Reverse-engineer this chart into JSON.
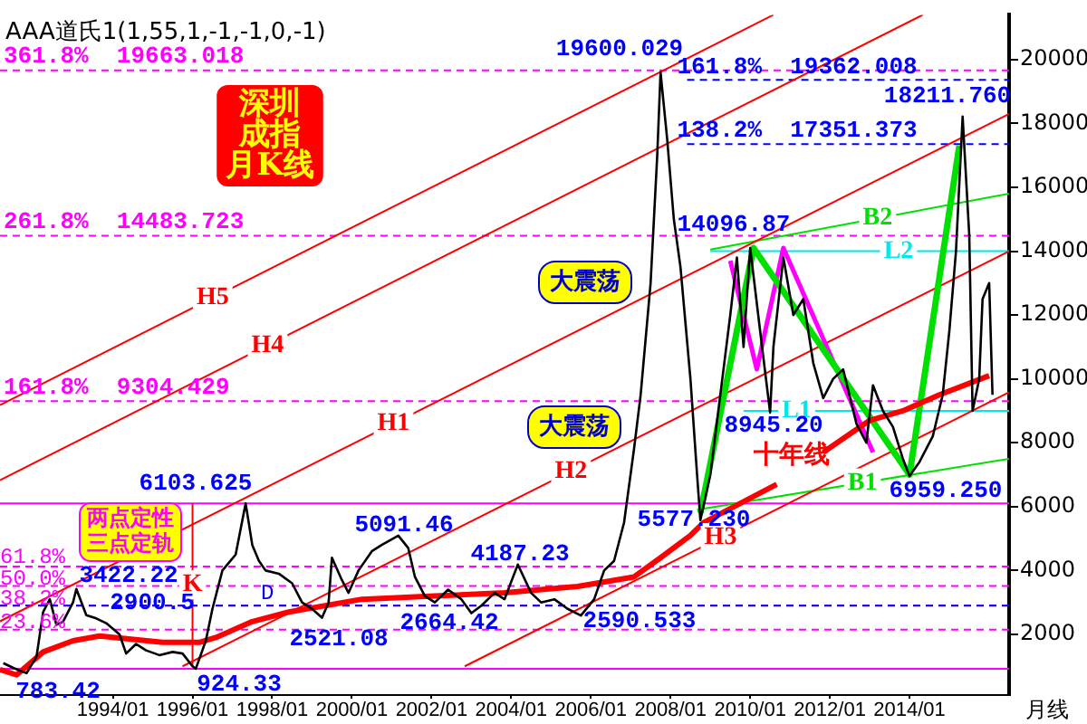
{
  "chart_data": {
    "type": "line",
    "title": "AAA道氏1(1,55,1,-1,-1,0,-1)",
    "marker": "none",
    "grid": false,
    "xlim": [
      "1991-03",
      "2016-07"
    ],
    "ylim": [
      100,
      21400
    ],
    "xticks": [
      {
        "value": "1994-01",
        "label": "1994/01"
      },
      {
        "value": "1996-01",
        "label": "1996/01"
      },
      {
        "value": "1998-01",
        "label": "1998/01"
      },
      {
        "value": "2000-01",
        "label": "2000/01"
      },
      {
        "value": "2002-01",
        "label": "2002/01"
      },
      {
        "value": "2004-01",
        "label": "2004/01"
      },
      {
        "value": "2006-01",
        "label": "2006/01"
      },
      {
        "value": "2008-01",
        "label": "2008/01"
      },
      {
        "value": "2010-01",
        "label": "2010/01"
      },
      {
        "value": "2012-01",
        "label": "2012/01"
      },
      {
        "value": "2014-01",
        "label": "2014/01"
      }
    ],
    "yticks": [
      2000,
      4000,
      6000,
      8000,
      10000,
      12000,
      14000,
      16000,
      18000,
      20000
    ],
    "series": [
      {
        "color": "#000000",
        "x": [
          "1991-04",
          "1991-07",
          "1991-11",
          "1992-02",
          "1992-04",
          "1992-06",
          "1992-08",
          "1992-10",
          "1993-01",
          "1993-02",
          "1993-05",
          "1993-08",
          "1993-11",
          "1994-03",
          "1994-05",
          "1994-08",
          "1994-11",
          "1995-03",
          "1995-07",
          "1995-10",
          "1996-01",
          "1996-02",
          "1996-05",
          "1996-07",
          "1996-10",
          "1997-02",
          "1997-05",
          "1997-07",
          "1997-09",
          "1997-11",
          "1998-03",
          "1998-07",
          "1998-10",
          "1999-01",
          "1999-04",
          "1999-06",
          "1999-07",
          "1999-10",
          "1999-12",
          "2000-03",
          "2000-07",
          "2000-10",
          "2001-03",
          "2001-06",
          "2001-08",
          "2001-11",
          "2002-02",
          "2002-06",
          "2002-10",
          "2003-01",
          "2003-04",
          "2003-08",
          "2003-11",
          "2004-03",
          "2004-07",
          "2004-10",
          "2005-02",
          "2005-06",
          "2005-10",
          "2006-02",
          "2006-05",
          "2006-08",
          "2006-11",
          "2007-02",
          "2007-04",
          "2007-07",
          "2007-09",
          "2007-10",
          "2007-12",
          "2008-02",
          "2008-04",
          "2008-07",
          "2008-09",
          "2008-10",
          "2009-01",
          "2009-04",
          "2009-07",
          "2009-09",
          "2009-11",
          "2010-01",
          "2010-04",
          "2010-07",
          "2010-08",
          "2010-11",
          "2011-02",
          "2011-05",
          "2011-08",
          "2011-11",
          "2012-02",
          "2012-05",
          "2012-09",
          "2012-12",
          "2013-02",
          "2013-05",
          "2013-08",
          "2013-11",
          "2014-01",
          "2014-04",
          "2014-08",
          "2014-11",
          "2015-01",
          "2015-03",
          "2015-05",
          "2015-07",
          "2015-08",
          "2015-10",
          "2015-11",
          "2016-01",
          "2016-02"
        ],
        "values": [
          1100,
          950,
          783.42,
          1300,
          2700,
          3100,
          2300,
          2400,
          3000,
          3422.22,
          2600,
          2500,
          2350,
          2000,
          1400,
          1700,
          1500,
          1350,
          1450,
          1400,
          1000,
          924.33,
          1800,
          2800,
          4000,
          4500,
          6103.625,
          4800,
          4300,
          4000,
          3900,
          3600,
          3000,
          2800,
          2521.08,
          3000,
          4400,
          3700,
          3300,
          4000,
          4600,
          4800,
          5091.46,
          4700,
          3800,
          3200,
          3000,
          3400,
          3100,
          2664.42,
          2900,
          3300,
          3100,
          4187.23,
          3300,
          3000,
          3100,
          2800,
          2590.533,
          3100,
          4000,
          4300,
          5500,
          7800,
          9500,
          13000,
          17000,
          19600.029,
          17500,
          15000,
          13500,
          10000,
          7000,
          5577.23,
          7000,
          9500,
          12000,
          13800,
          11000,
          14096.87,
          11500,
          8945.2,
          11000,
          13800,
          12000,
          12500,
          10500,
          9400,
          10000,
          10300,
          8600,
          8000,
          9800,
          9000,
          8500,
          7500,
          6959.25,
          7400,
          8200,
          9500,
          11500,
          14000,
          18211.76,
          14500,
          9000,
          10000,
          12500,
          13000,
          9500
        ]
      },
      {
        "color": "#ff0000",
        "x": [
          "1991-03",
          "1991-08",
          "1992-04",
          "1993-01",
          "1993-09",
          "1995-04",
          "1996-03",
          "1996-08",
          "1997-07",
          "1998-06",
          "2000-04",
          "2002-02",
          "2003-11",
          "2005-09",
          "2007-02",
          "2007-10",
          "2008-07",
          "2008-11",
          "2010-09",
          "2011-04",
          "2011-11",
          "2013-01",
          "2013-11",
          "2014-10",
          "2016-01"
        ],
        "values": [
          900,
          730,
          1450,
          1800,
          1950,
          1750,
          1750,
          1900,
          2400,
          2700,
          3100,
          3200,
          3300,
          3500,
          3800,
          4400,
          5100,
          5500,
          6700,
          null,
          7700,
          8700,
          9000,
          9500,
          10100
        ]
      },
      {
        "color": "#00e000",
        "x": [
          "2008-10",
          "2010-02",
          "2014-01",
          "2015-04"
        ],
        "values": [
          5800,
          14100,
          7000,
          17300
        ]
      },
      {
        "color": "#ff00ff",
        "x": [
          "2009-07",
          "2010-03",
          "2010-11",
          "2013-02"
        ],
        "values": [
          13700,
          10300,
          14100,
          7700
        ]
      },
      {
        "name": "H5",
        "color": "#ff0000",
        "x": [
          "1991-03",
          "2010-08"
        ],
        "values": [
          9180,
          21400
        ]
      },
      {
        "name": "H4",
        "color": "#ff0000",
        "x": [
          "1991-03",
          "2014-05"
        ],
        "values": [
          6830,
          21400
        ]
      },
      {
        "name": "H1",
        "color": "#ff0000",
        "x": [
          "1991-03",
          "2016-07"
        ],
        "values": [
          2410,
          18300
        ]
      },
      {
        "name": "H2",
        "color": "#ff0000",
        "x": [
          "1995-10",
          "2016-07"
        ],
        "values": [
          1000,
          14000
        ]
      },
      {
        "name": "H3",
        "color": "#ff0000",
        "x": [
          "2002-11",
          "2016-07"
        ],
        "values": [
          1000,
          9580
        ]
      },
      {
        "name": "B1",
        "color": "#00e000",
        "x": [
          "2008-09",
          "2016-07"
        ],
        "values": [
          5900,
          7500
        ]
      },
      {
        "name": "B2",
        "color": "#00e000",
        "x": [
          "2009-01",
          "2016-07"
        ],
        "values": [
          14050,
          15800
        ]
      },
      {
        "name": "L1",
        "color": "#00e8e8",
        "x": [
          "2009-11",
          "2016-07"
        ],
        "values": [
          9000,
          9000
        ]
      },
      {
        "name": "L2",
        "color": "#00e8e8",
        "x": [
          "2009-01",
          "2016-07"
        ],
        "values": [
          14000,
          14000
        ]
      },
      {
        "name": "K",
        "color": "#ff0000",
        "x": [
          "1996-01",
          "1996-01"
        ],
        "values": [
          1000,
          6100
        ]
      },
      {
        "color": "#0000ff",
        "line_style": "dashed",
        "x": [
          "2008-06",
          "2016-07"
        ],
        "values": [
          19362.008,
          19362.008
        ]
      },
      {
        "color": "#0000ff",
        "line_style": "dashed",
        "x": [
          "2008-06",
          "2016-07"
        ],
        "values": [
          17351.373,
          17351.373
        ]
      }
    ],
    "ref_lines": [
      {
        "axis": "y",
        "value": 19663.018,
        "label": "361.8%  19663.018",
        "color": "#ff00ff",
        "line_style": "dashed"
      },
      {
        "axis": "y",
        "value": 14483.723,
        "label": "261.8%  14483.723",
        "color": "#ff00ff",
        "line_style": "dashed"
      },
      {
        "axis": "y",
        "value": 9304.429,
        "label": "161.8%  9304.429",
        "color": "#ff00ff",
        "line_style": "dashed"
      },
      {
        "axis": "y",
        "value": 6103.625,
        "color": "#ff00ff",
        "line_style": "solid"
      },
      {
        "axis": "y",
        "value": 4125,
        "color": "#ff00ff",
        "line_style": "dashed"
      },
      {
        "axis": "y",
        "value": 3514,
        "color": "#ff00ff",
        "line_style": "dashed"
      },
      {
        "axis": "y",
        "value": 2903,
        "color": "#ff00ff",
        "line_style": "dashed"
      },
      {
        "axis": "y",
        "value": 2147,
        "color": "#ff00ff",
        "line_style": "dashed"
      },
      {
        "axis": "y",
        "value": 924.33,
        "color": "#ff00ff",
        "line_style": "solid"
      },
      {
        "axis": "y",
        "value": 2900.5,
        "label": "D",
        "color": "#0000ff",
        "line_style": "dashed"
      }
    ],
    "annotations": [
      "19600.029",
      "18211.760",
      "161.8%  19362.008",
      "138.2%  17351.373",
      "14096.87",
      "8945.20",
      "5577.230",
      "6959.250",
      "6103.625",
      "5091.46",
      "4187.23",
      "3422.22",
      "2900.5",
      "2521.08",
      "2664.42",
      "2590.533",
      "924.33",
      "783.42",
      "大震荡",
      "大震荡",
      "十年线",
      "深圳成指月K线",
      "两点定性三点定轨",
      "月线",
      "61.8%",
      "50.0%",
      "38.2%",
      "23.6%"
    ]
  }
}
